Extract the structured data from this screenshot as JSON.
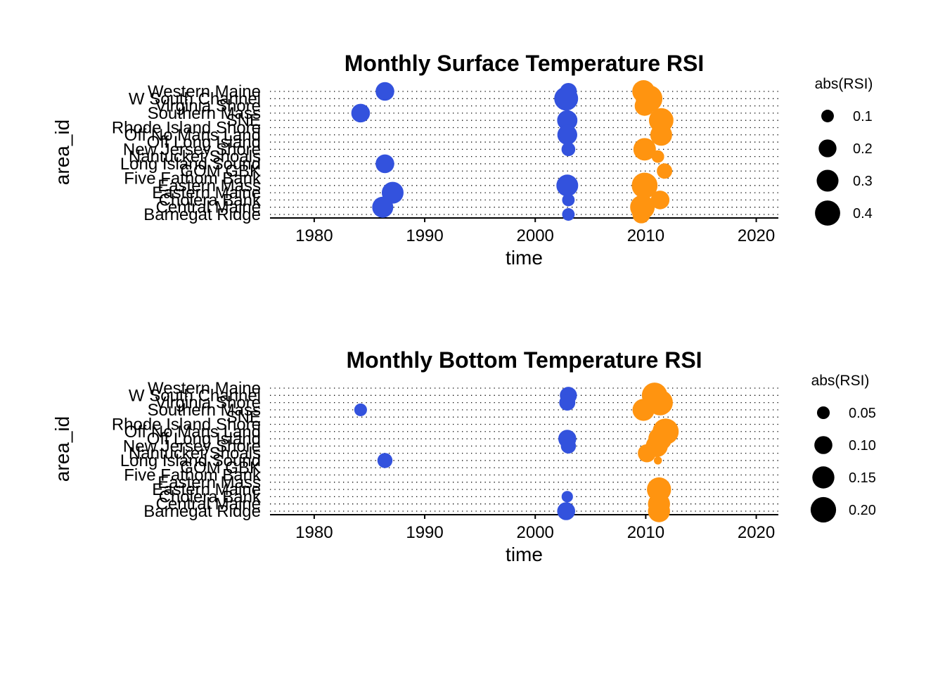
{
  "chart_data": [
    {
      "type": "scatter",
      "title": "Monthly Surface Temperature RSI",
      "xlabel": "time",
      "ylabel": "area_id",
      "xlim": [
        1976,
        2022
      ],
      "xticks": [
        "1980",
        "1990",
        "2000",
        "2010",
        "2020"
      ],
      "grid": "dotted horizontal",
      "legend": {
        "title": "abs(RSI)",
        "position": "right",
        "labels": [
          "0.1",
          "0.2",
          "0.3",
          "0.4"
        ],
        "values": [
          0.1,
          0.2,
          0.3,
          0.4
        ],
        "max": 0.45
      },
      "categories": [
        "Barnegat Ridge",
        "Central Maine",
        "Cholera Bank",
        "Eastern Maine",
        "Eastern Mass",
        "Five Fathom Bank",
        "GOM GBK",
        "Long Island Sound",
        "Nantucket Shoals",
        "New Jersey Shore",
        "Off Long Island",
        "Off No Mans Land",
        "Rhode Island Shore",
        "SNE",
        "Southern Mass",
        "Virginia Shore",
        "W South Channel",
        "Western Maine"
      ],
      "colors": {
        "negative": "#3352dd",
        "positive": "#ff9410"
      },
      "points": [
        {
          "x": 1986.4,
          "y": "Western Maine",
          "size": 0.22,
          "sign": "negative"
        },
        {
          "x": 2003.0,
          "y": "Western Maine",
          "size": 0.18,
          "sign": "negative"
        },
        {
          "x": 2009.8,
          "y": "Western Maine",
          "size": 0.32,
          "sign": "positive"
        },
        {
          "x": 2002.8,
          "y": "W South Channel",
          "size": 0.36,
          "sign": "negative"
        },
        {
          "x": 2010.3,
          "y": "W South Channel",
          "size": 0.45,
          "sign": "positive"
        },
        {
          "x": 2009.9,
          "y": "Virginia Shore",
          "size": 0.25,
          "sign": "positive"
        },
        {
          "x": 1984.2,
          "y": "Southern Mass",
          "size": 0.22,
          "sign": "negative"
        },
        {
          "x": 2002.9,
          "y": "SNE",
          "size": 0.26,
          "sign": "negative"
        },
        {
          "x": 2011.4,
          "y": "SNE",
          "size": 0.38,
          "sign": "positive"
        },
        {
          "x": 2002.9,
          "y": "Off No Mans Land",
          "size": 0.25,
          "sign": "negative"
        },
        {
          "x": 2011.4,
          "y": "Off No Mans Land",
          "size": 0.3,
          "sign": "positive"
        },
        {
          "x": 2003.0,
          "y": "New Jersey Shore",
          "size": 0.12,
          "sign": "negative"
        },
        {
          "x": 2009.9,
          "y": "New Jersey Shore",
          "size": 0.32,
          "sign": "positive"
        },
        {
          "x": 1986.4,
          "y": "Long Island Sound",
          "size": 0.22,
          "sign": "negative"
        },
        {
          "x": 2011.1,
          "y": "Nantucket Shoals",
          "size": 0.1,
          "sign": "positive"
        },
        {
          "x": 2011.7,
          "y": "GOM GBK",
          "size": 0.15,
          "sign": "positive"
        },
        {
          "x": 2002.9,
          "y": "Eastern Mass",
          "size": 0.3,
          "sign": "negative"
        },
        {
          "x": 2009.9,
          "y": "Eastern Mass",
          "size": 0.42,
          "sign": "positive"
        },
        {
          "x": 1987.1,
          "y": "Eastern Maine",
          "size": 0.3,
          "sign": "negative"
        },
        {
          "x": 2003.0,
          "y": "Cholera Bank",
          "size": 0.1,
          "sign": "negative"
        },
        {
          "x": 2011.3,
          "y": "Cholera Bank",
          "size": 0.22,
          "sign": "positive"
        },
        {
          "x": 1986.2,
          "y": "Central Maine",
          "size": 0.28,
          "sign": "negative"
        },
        {
          "x": 2009.7,
          "y": "Central Maine",
          "size": 0.38,
          "sign": "positive"
        },
        {
          "x": 2003.0,
          "y": "Barnegat Ridge",
          "size": 0.1,
          "sign": "negative"
        },
        {
          "x": 2009.6,
          "y": "Barnegat Ridge",
          "size": 0.2,
          "sign": "positive"
        }
      ]
    },
    {
      "type": "scatter",
      "title": "Monthly Bottom Temperature RSI",
      "xlabel": "time",
      "ylabel": "area_id",
      "xlim": [
        1976,
        2022
      ],
      "xticks": [
        "1980",
        "1990",
        "2000",
        "2010",
        "2020"
      ],
      "grid": "dotted horizontal",
      "legend": {
        "title": "abs(RSI)",
        "position": "right",
        "labels": [
          "0.05",
          "0.10",
          "0.15",
          "0.20"
        ],
        "values": [
          0.05,
          0.1,
          0.15,
          0.2
        ],
        "max": 0.22
      },
      "categories": [
        "Barnegat Ridge",
        "Central Maine",
        "Cholera Bank",
        "Eastern Maine",
        "Eastern Mass",
        "Five Fathom Bank",
        "GOM GBK",
        "Long Island Sound",
        "Nantucket Shoals",
        "New Jersey Shore",
        "Off Long Island",
        "Off No Mans Land",
        "Rhode Island Shore",
        "SNE",
        "Southern Mass",
        "Virginia Shore",
        "W South Channel",
        "Western Maine"
      ],
      "colors": {
        "negative": "#3352dd",
        "positive": "#ff9410"
      },
      "points": [
        {
          "x": 2003.0,
          "y": "W South Channel",
          "size": 0.09,
          "sign": "negative"
        },
        {
          "x": 2010.8,
          "y": "W South Channel",
          "size": 0.2,
          "sign": "positive"
        },
        {
          "x": 2002.9,
          "y": "Virginia Shore",
          "size": 0.08,
          "sign": "negative"
        },
        {
          "x": 2011.3,
          "y": "Virginia Shore",
          "size": 0.2,
          "sign": "positive"
        },
        {
          "x": 1984.2,
          "y": "Southern Mass",
          "size": 0.05,
          "sign": "negative"
        },
        {
          "x": 2009.8,
          "y": "Southern Mass",
          "size": 0.15,
          "sign": "positive"
        },
        {
          "x": 2011.8,
          "y": "Off No Mans Land",
          "size": 0.21,
          "sign": "positive"
        },
        {
          "x": 2002.9,
          "y": "Off Long Island",
          "size": 0.1,
          "sign": "negative"
        },
        {
          "x": 2011.3,
          "y": "Off Long Island",
          "size": 0.17,
          "sign": "positive"
        },
        {
          "x": 2003.0,
          "y": "New Jersey Shore",
          "size": 0.07,
          "sign": "negative"
        },
        {
          "x": 2011.0,
          "y": "New Jersey Shore",
          "size": 0.15,
          "sign": "positive"
        },
        {
          "x": 2010.1,
          "y": "Nantucket Shoals",
          "size": 0.1,
          "sign": "positive"
        },
        {
          "x": 1986.4,
          "y": "Long Island Sound",
          "size": 0.07,
          "sign": "negative"
        },
        {
          "x": 2011.1,
          "y": "Long Island Sound",
          "size": 0.02,
          "sign": "positive"
        },
        {
          "x": 2011.2,
          "y": "Eastern Maine",
          "size": 0.18,
          "sign": "positive"
        },
        {
          "x": 2002.9,
          "y": "Cholera Bank",
          "size": 0.04,
          "sign": "negative"
        },
        {
          "x": 2011.2,
          "y": "Central Maine",
          "size": 0.15,
          "sign": "positive"
        },
        {
          "x": 2002.8,
          "y": "Barnegat Ridge",
          "size": 0.1,
          "sign": "negative"
        },
        {
          "x": 2011.2,
          "y": "Barnegat Ridge",
          "size": 0.15,
          "sign": "positive"
        }
      ]
    }
  ]
}
